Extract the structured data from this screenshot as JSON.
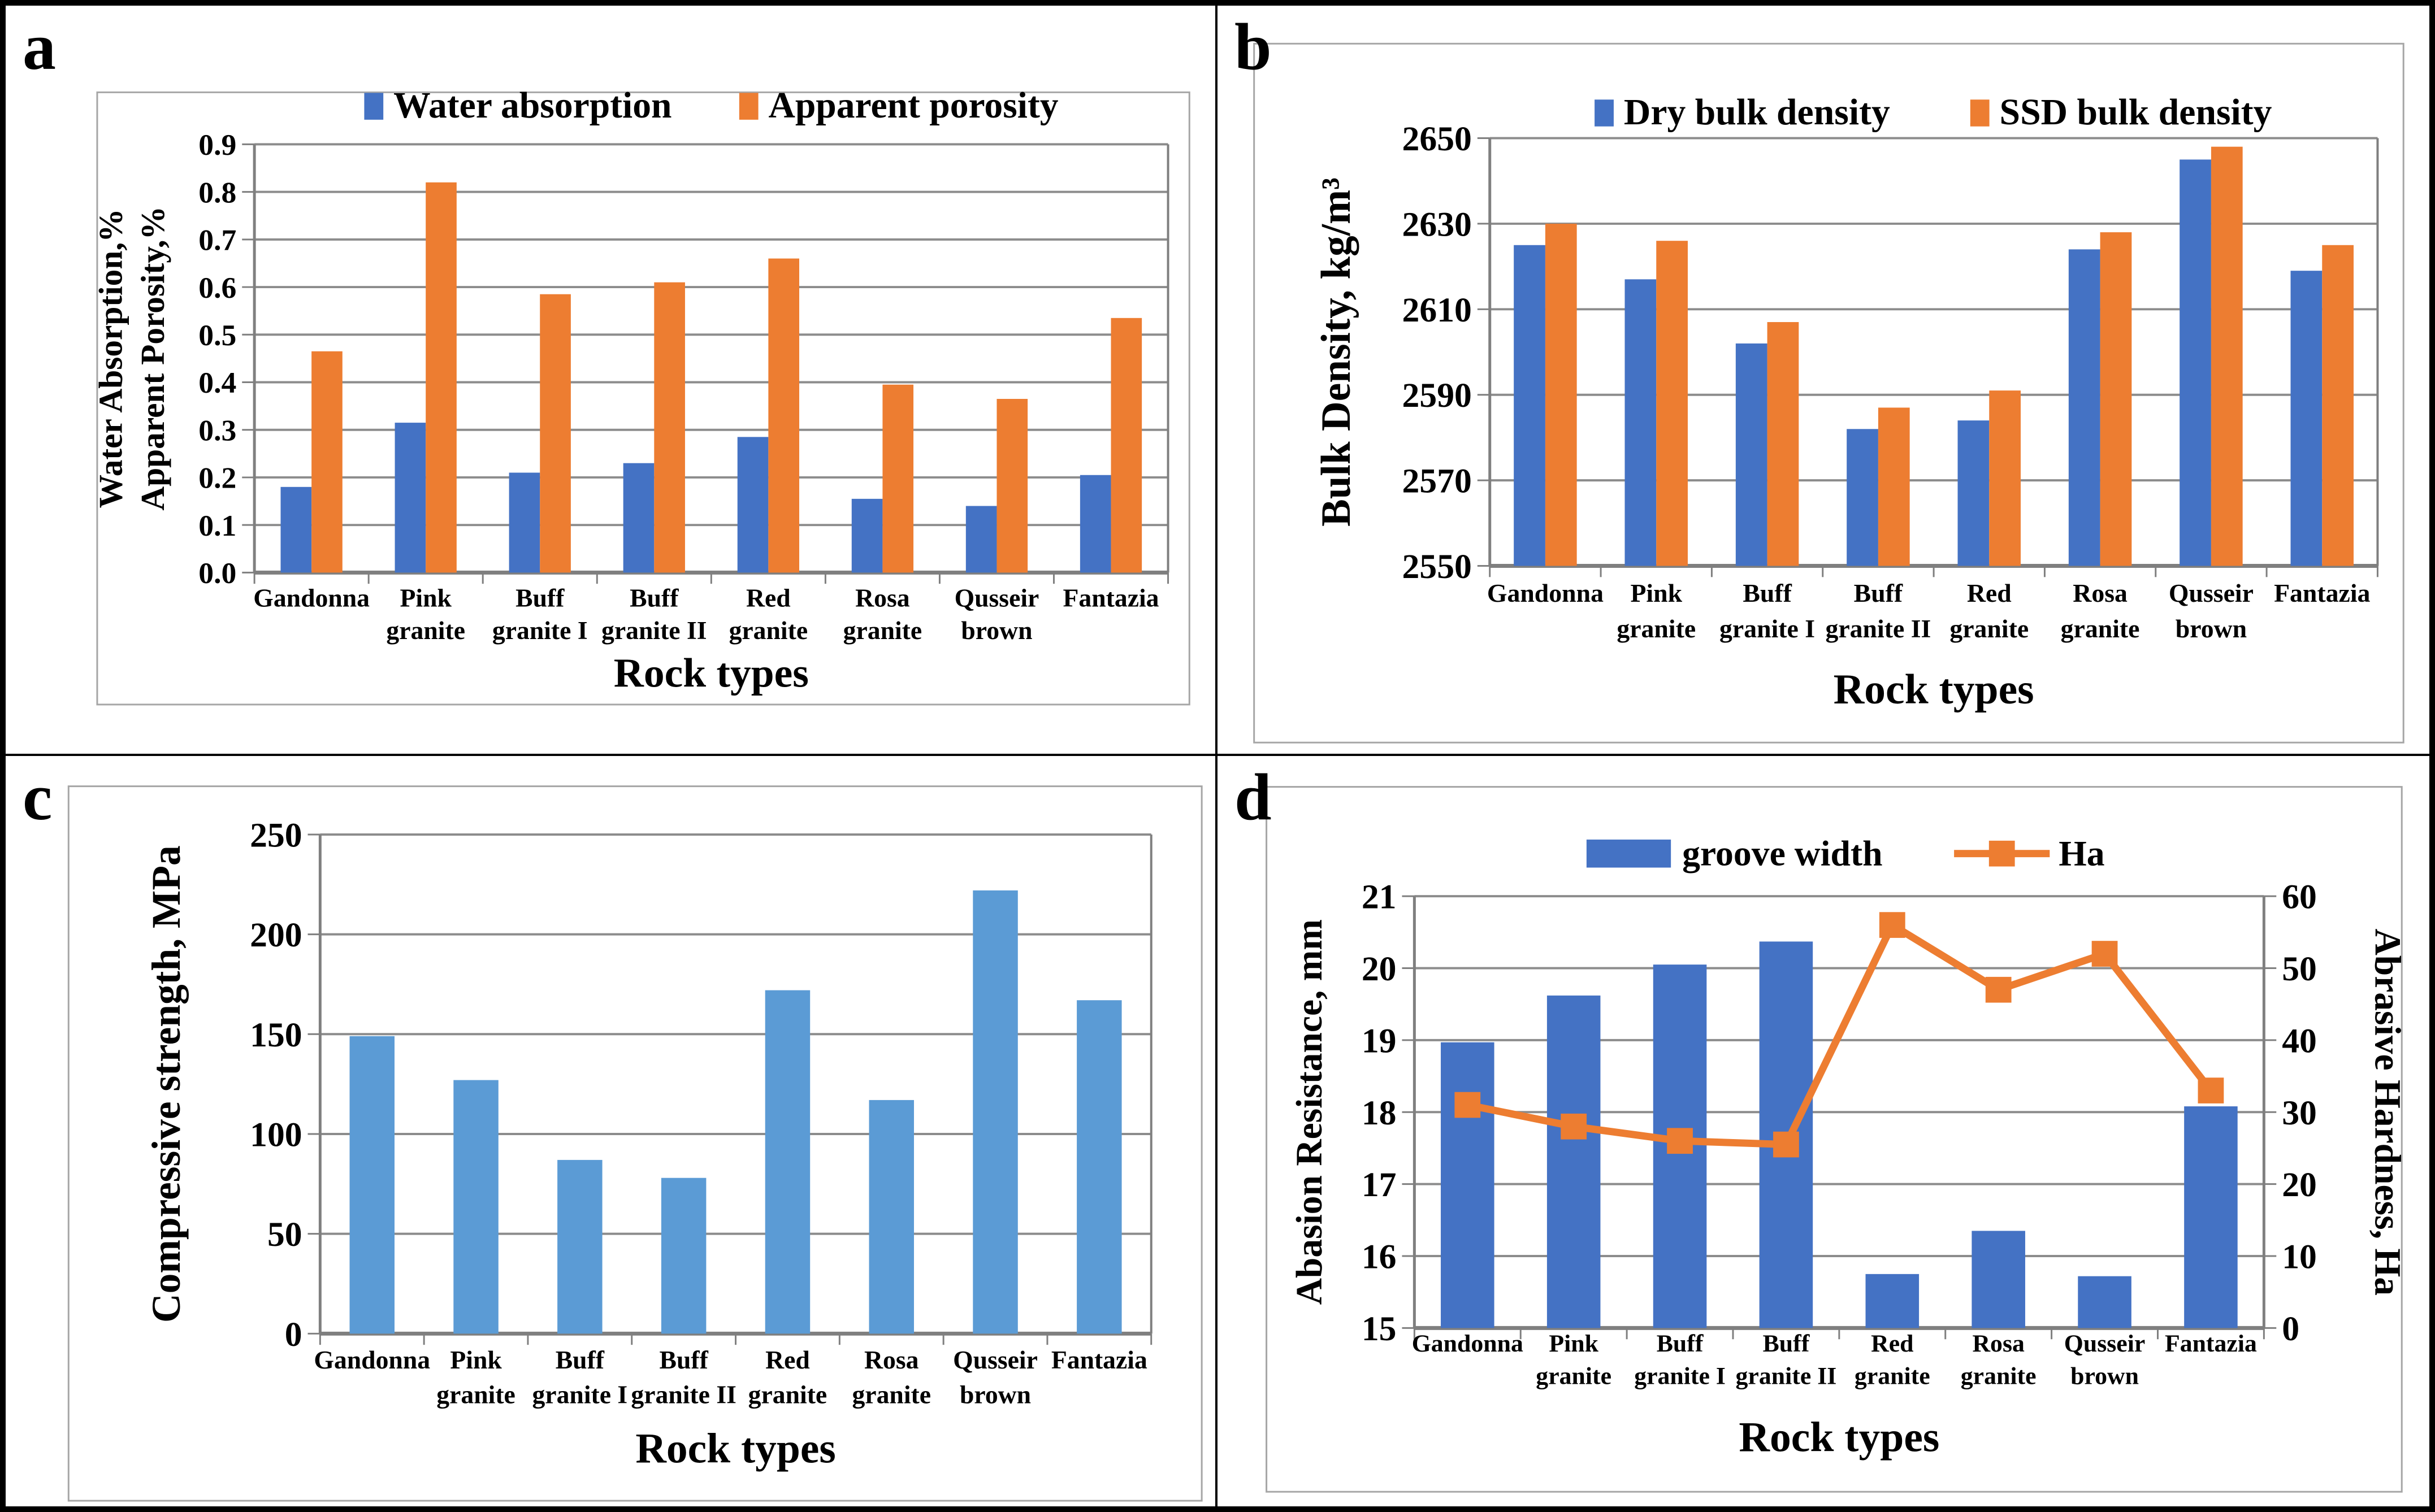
{
  "colors": {
    "series_blue": "#4472C4",
    "series_orange": "#ED7D31",
    "series_light_blue": "#5B9BD5",
    "gridline": "#8C8C8C",
    "axis": "#7F7F7F",
    "chart_border": "#A6A6A6",
    "panel_border": "#000000"
  },
  "figure": {
    "panels": [
      {
        "label": "a"
      },
      {
        "label": "b"
      },
      {
        "label": "c"
      },
      {
        "label": "d"
      }
    ]
  },
  "categories": [
    "Gandonna",
    "Pink granite",
    "Buff granite I",
    "Buff granite II",
    "Red granite",
    "Rosa granite",
    "Qusseir brown",
    "Fantazia"
  ],
  "categories_lines": [
    [
      "Gandonna"
    ],
    [
      "Pink",
      "granite"
    ],
    [
      "Buff",
      "granite I"
    ],
    [
      "Buff",
      "granite II"
    ],
    [
      "Red",
      "granite"
    ],
    [
      "Rosa",
      "granite"
    ],
    [
      "Qusseir",
      "brown"
    ],
    [
      "Fantazia"
    ]
  ],
  "chart_data": [
    {
      "panel": "a",
      "type": "bar",
      "categories": [
        "Gandonna",
        "Pink granite",
        "Buff granite I",
        "Buff granite II",
        "Red granite",
        "Rosa granite",
        "Qusseir brown",
        "Fantazia"
      ],
      "series": [
        {
          "name": "Water absorption",
          "color": "series_blue",
          "values": [
            0.18,
            0.315,
            0.21,
            0.23,
            0.285,
            0.155,
            0.14,
            0.205
          ]
        },
        {
          "name": "Apparent porosity",
          "color": "series_orange",
          "values": [
            0.465,
            0.82,
            0.585,
            0.61,
            0.66,
            0.395,
            0.365,
            0.535
          ]
        }
      ],
      "ylabel_lines": [
        "Water Absorption,%",
        "Apparent Porosity,%"
      ],
      "xlabel": "Rock types",
      "ylim": [
        0,
        0.9
      ],
      "yticks": [
        "0.0",
        "0.1",
        "0.2",
        "0.3",
        "0.4",
        "0.5",
        "0.6",
        "0.7",
        "0.8",
        "0.9"
      ],
      "grid": "horizontal",
      "legend_position": "top"
    },
    {
      "panel": "b",
      "type": "bar",
      "categories": [
        "Gandonna",
        "Pink granite",
        "Buff granite I",
        "Buff granite II",
        "Red granite",
        "Rosa granite",
        "Qusseir brown",
        "Fantazia"
      ],
      "series": [
        {
          "name": "Dry bulk density",
          "color": "series_blue",
          "values": [
            2625,
            2617,
            2602,
            2582,
            2584,
            2624,
            2645,
            2619
          ]
        },
        {
          "name": "SSD bulk density",
          "color": "series_orange",
          "values": [
            2630,
            2626,
            2607,
            2587,
            2591,
            2628,
            2648,
            2625
          ]
        }
      ],
      "ylabel_lines": [
        "Bulk Density, kg/m³"
      ],
      "xlabel": "Rock types",
      "ylim": [
        2550,
        2650
      ],
      "yticks": [
        "2550",
        "2570",
        "2590",
        "2610",
        "2630",
        "2650"
      ],
      "grid": "horizontal",
      "legend_position": "top"
    },
    {
      "panel": "c",
      "type": "bar",
      "categories": [
        "Gandonna",
        "Pink granite",
        "Buff granite I",
        "Buff granite II",
        "Red granite",
        "Rosa granite",
        "Qusseir brown",
        "Fantazia"
      ],
      "series": [
        {
          "name": "Compressive strength",
          "color": "series_light_blue",
          "values": [
            149,
            127,
            87,
            78,
            172,
            117,
            222,
            167
          ]
        }
      ],
      "ylabel_lines": [
        "Compressive strength, MPa"
      ],
      "xlabel": "Rock types",
      "ylim": [
        0,
        250
      ],
      "yticks": [
        "0",
        "50",
        "100",
        "150",
        "200",
        "250"
      ],
      "grid": "horizontal",
      "legend_position": "none"
    },
    {
      "panel": "d",
      "type": "bar+line",
      "categories": [
        "Gandonna",
        "Pink granite",
        "Buff granite I",
        "Buff granite II",
        "Red granite",
        "Rosa granite",
        "Qusseir brown",
        "Fantazia"
      ],
      "series": [
        {
          "name": "groove width",
          "kind": "bar",
          "axis": "left",
          "color": "series_blue",
          "values": [
            18.97,
            19.62,
            20.05,
            20.37,
            15.75,
            16.35,
            15.72,
            18.08
          ]
        },
        {
          "name": "Ha",
          "kind": "line",
          "axis": "right",
          "color": "series_orange",
          "values": [
            31,
            28,
            26,
            25.5,
            56,
            47,
            52,
            33
          ]
        }
      ],
      "ylabel_lines": [
        "Abasion Resistance, mm"
      ],
      "ylabel_right": "Abrasive Hardness, Ha",
      "xlabel": "Rock types",
      "ylim": [
        15,
        21
      ],
      "yticks": [
        "15",
        "16",
        "17",
        "18",
        "19",
        "20",
        "21"
      ],
      "ylim_right": [
        0,
        60
      ],
      "yticks_right": [
        "0",
        "10",
        "20",
        "30",
        "40",
        "50",
        "60"
      ],
      "grid": "horizontal",
      "legend_position": "top"
    }
  ]
}
